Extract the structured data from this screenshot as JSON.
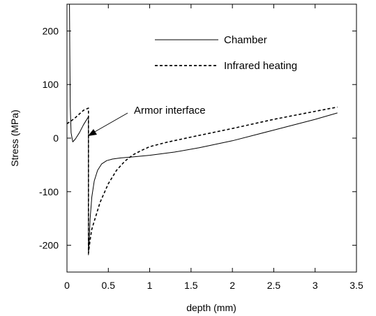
{
  "chart_data": {
    "type": "line",
    "title": "",
    "xlabel": "depth (mm)",
    "ylabel": "Stress (MPa)",
    "xlim": [
      0,
      3.5
    ],
    "ylim": [
      -250,
      250
    ],
    "xticks": [
      "0",
      "0.5",
      "1",
      "1.5",
      "2",
      "2.5",
      "3",
      "3.5"
    ],
    "yticks": [
      "200",
      "100",
      "0",
      "-100",
      "-200"
    ],
    "grid": false,
    "legend_position": "top-right",
    "annotation": {
      "text": "Armor interface",
      "x": 0.26,
      "y": 0
    },
    "series": [
      {
        "name": "Chamber",
        "style": "solid",
        "x": [
          0.03,
          0.035,
          0.04,
          0.05,
          0.07,
          0.1,
          0.15,
          0.2,
          0.26,
          0.26,
          0.27,
          0.28,
          0.3,
          0.33,
          0.37,
          0.42,
          0.48,
          0.55,
          0.65,
          0.8,
          1.0,
          1.3,
          1.6,
          2.0,
          2.5,
          3.0,
          3.27
        ],
        "y": [
          250,
          140,
          60,
          10,
          -7,
          -2,
          10,
          25,
          40,
          -218,
          -190,
          -150,
          -110,
          -80,
          -60,
          -48,
          -42,
          -39,
          -37,
          -35,
          -32,
          -26,
          -18,
          -5,
          15,
          35,
          47
        ]
      },
      {
        "name": "Infrared heating",
        "style": "dashed",
        "x": [
          0.0,
          0.05,
          0.1,
          0.15,
          0.2,
          0.26,
          0.26,
          0.28,
          0.3,
          0.35,
          0.4,
          0.5,
          0.6,
          0.7,
          0.8,
          0.9,
          1.0,
          1.2,
          1.5,
          2.0,
          2.5,
          3.0,
          3.27
        ],
        "y": [
          27,
          32,
          38,
          45,
          52,
          56,
          -215,
          -190,
          -170,
          -145,
          -120,
          -85,
          -60,
          -43,
          -31,
          -23,
          -16,
          -8,
          2,
          18,
          35,
          50,
          58
        ]
      }
    ]
  }
}
